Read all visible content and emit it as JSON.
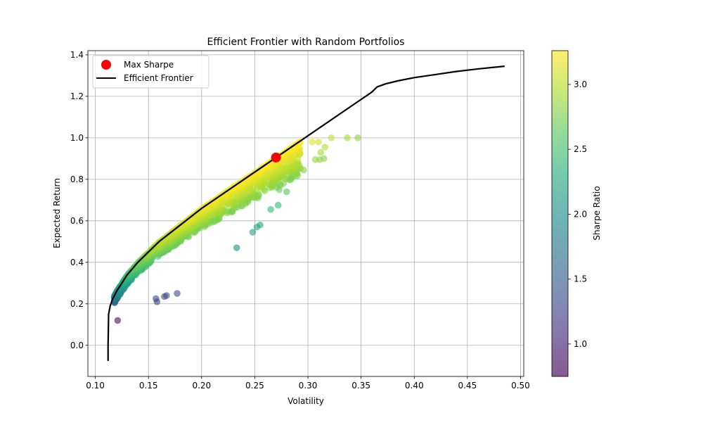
{
  "chart_data": {
    "type": "scatter",
    "title": "Efficient Frontier with Random Portfolios",
    "xlabel": "Volatility",
    "ylabel": "Expected Return",
    "xlim": [
      0.093,
      0.503
    ],
    "ylim": [
      -0.15,
      1.42
    ],
    "xticks": [
      0.1,
      0.15,
      0.2,
      0.25,
      0.3,
      0.35,
      0.4,
      0.45,
      0.5
    ],
    "yticks": [
      0.0,
      0.2,
      0.4,
      0.6,
      0.8,
      1.0,
      1.2,
      1.4
    ],
    "grid": true,
    "legend": {
      "placement": "top-left",
      "entries": [
        {
          "label": "Max Sharpe",
          "marker": "dot",
          "color": "#ff0000"
        },
        {
          "label": "Efficient Frontier",
          "marker": "line",
          "color": "#000000"
        }
      ]
    },
    "colorbar": {
      "label": "Sharpe Ratio",
      "range": [
        0.75,
        3.26
      ],
      "ticks": [
        1.0,
        1.5,
        2.0,
        2.5,
        3.0
      ],
      "colormap": "viridis"
    },
    "random_portfolios": {
      "count": 1800,
      "color_by": "Sharpe Ratio",
      "outliers": [
        {
          "x": 0.121,
          "y": 0.12
        },
        {
          "x": 0.158,
          "y": 0.21
        },
        {
          "x": 0.157,
          "y": 0.225
        },
        {
          "x": 0.165,
          "y": 0.235
        },
        {
          "x": 0.167,
          "y": 0.24
        },
        {
          "x": 0.177,
          "y": 0.25
        },
        {
          "x": 0.233,
          "y": 0.47
        },
        {
          "x": 0.248,
          "y": 0.545
        },
        {
          "x": 0.252,
          "y": 0.57
        },
        {
          "x": 0.255,
          "y": 0.58
        },
        {
          "x": 0.265,
          "y": 0.655
        },
        {
          "x": 0.272,
          "y": 0.675
        },
        {
          "x": 0.273,
          "y": 0.75
        },
        {
          "x": 0.28,
          "y": 0.74
        },
        {
          "x": 0.296,
          "y": 0.845
        },
        {
          "x": 0.307,
          "y": 0.895
        },
        {
          "x": 0.311,
          "y": 0.895
        },
        {
          "x": 0.315,
          "y": 0.9
        },
        {
          "x": 0.312,
          "y": 0.93
        },
        {
          "x": 0.316,
          "y": 0.955
        },
        {
          "x": 0.31,
          "y": 0.98
        },
        {
          "x": 0.304,
          "y": 0.98
        },
        {
          "x": 0.322,
          "y": 1.0
        },
        {
          "x": 0.337,
          "y": 1.0
        },
        {
          "x": 0.347,
          "y": 1.0
        }
      ]
    },
    "efficient_frontier": {
      "name": "Efficient Frontier",
      "color": "#000000",
      "x": [
        0.112,
        0.112,
        0.1125,
        0.114,
        0.116,
        0.12,
        0.125,
        0.13,
        0.14,
        0.15,
        0.16,
        0.18,
        0.2,
        0.22,
        0.24,
        0.26,
        0.28,
        0.3,
        0.32,
        0.34,
        0.36,
        0.365,
        0.373,
        0.385,
        0.4,
        0.42,
        0.44,
        0.46,
        0.485
      ],
      "y": [
        -0.075,
        0.0,
        0.15,
        0.19,
        0.22,
        0.26,
        0.3,
        0.34,
        0.4,
        0.45,
        0.5,
        0.58,
        0.66,
        0.73,
        0.8,
        0.87,
        0.94,
        1.01,
        1.08,
        1.15,
        1.22,
        1.245,
        1.26,
        1.275,
        1.29,
        1.305,
        1.32,
        1.332,
        1.345
      ]
    },
    "max_sharpe": {
      "name": "Max Sharpe",
      "x": 0.27,
      "y": 0.905,
      "color": "#ff0000"
    }
  }
}
